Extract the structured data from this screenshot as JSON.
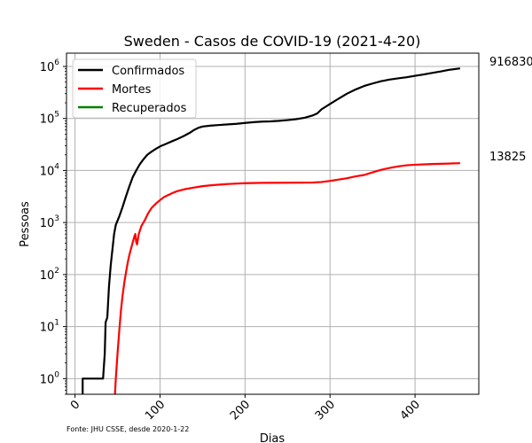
{
  "chart_data": {
    "type": "line",
    "title": "Sweden - Casos de COVID-19 (2021-4-20)",
    "xlabel": "Dias",
    "ylabel": "Pessoas",
    "yscale": "log",
    "xlim": [
      -10,
      475
    ],
    "ylim": [
      0.5,
      1800000
    ],
    "xticks": [
      0,
      100,
      200,
      300,
      400
    ],
    "xtick_labels": [
      "0",
      "100",
      "200",
      "300",
      "400"
    ],
    "yticks": [
      1,
      10,
      100,
      1000,
      10000,
      100000,
      1000000
    ],
    "ytick_base": "10",
    "ytick_exponents": [
      "0",
      "1",
      "2",
      "3",
      "4",
      "5",
      "6"
    ],
    "grid": true,
    "legend_position": "top-left",
    "source_note": "Fonte: JHU CSSE, desde 2020-1-22",
    "annotations": [
      {
        "text": "916830",
        "series": "Confirmados",
        "y": 916830
      },
      {
        "text": "13825",
        "series": "Mortes",
        "y": 13825
      }
    ],
    "series": [
      {
        "name": "Confirmados",
        "color": "#000000",
        "points": [
          [
            9,
            0.5
          ],
          [
            9,
            1
          ],
          [
            33,
            1
          ],
          [
            35,
            3
          ],
          [
            36,
            12
          ],
          [
            38,
            15
          ],
          [
            40,
            60
          ],
          [
            42,
            150
          ],
          [
            44,
            300
          ],
          [
            46,
            600
          ],
          [
            48,
            900
          ],
          [
            52,
            1300
          ],
          [
            56,
            2000
          ],
          [
            60,
            3200
          ],
          [
            64,
            5000
          ],
          [
            68,
            7500
          ],
          [
            72,
            10000
          ],
          [
            76,
            13000
          ],
          [
            80,
            16000
          ],
          [
            85,
            20000
          ],
          [
            90,
            23000
          ],
          [
            95,
            26000
          ],
          [
            100,
            29000
          ],
          [
            108,
            33000
          ],
          [
            115,
            37000
          ],
          [
            120,
            40000
          ],
          [
            128,
            46000
          ],
          [
            135,
            53000
          ],
          [
            140,
            60000
          ],
          [
            145,
            66000
          ],
          [
            150,
            70000
          ],
          [
            160,
            73000
          ],
          [
            170,
            75000
          ],
          [
            180,
            77000
          ],
          [
            190,
            79000
          ],
          [
            200,
            82000
          ],
          [
            210,
            85000
          ],
          [
            220,
            87000
          ],
          [
            230,
            88000
          ],
          [
            240,
            90000
          ],
          [
            250,
            93000
          ],
          [
            260,
            97000
          ],
          [
            270,
            103000
          ],
          [
            280,
            115000
          ],
          [
            285,
            125000
          ],
          [
            290,
            150000
          ],
          [
            300,
            190000
          ],
          [
            310,
            240000
          ],
          [
            320,
            300000
          ],
          [
            330,
            360000
          ],
          [
            340,
            420000
          ],
          [
            350,
            470000
          ],
          [
            360,
            520000
          ],
          [
            370,
            560000
          ],
          [
            380,
            590000
          ],
          [
            390,
            620000
          ],
          [
            400,
            660000
          ],
          [
            410,
            700000
          ],
          [
            420,
            750000
          ],
          [
            430,
            800000
          ],
          [
            440,
            860000
          ],
          [
            453,
            916830
          ]
        ]
      },
      {
        "name": "Mortes",
        "color": "#ff0000",
        "points": [
          [
            47,
            0.5
          ],
          [
            48,
            1
          ],
          [
            50,
            3
          ],
          [
            52,
            8
          ],
          [
            54,
            20
          ],
          [
            56,
            40
          ],
          [
            58,
            70
          ],
          [
            60,
            110
          ],
          [
            62,
            170
          ],
          [
            64,
            240
          ],
          [
            66,
            320
          ],
          [
            68,
            420
          ],
          [
            70,
            550
          ],
          [
            71,
            600
          ],
          [
            72,
            420
          ],
          [
            73,
            380
          ],
          [
            75,
            600
          ],
          [
            78,
            850
          ],
          [
            82,
            1100
          ],
          [
            86,
            1500
          ],
          [
            90,
            1900
          ],
          [
            95,
            2300
          ],
          [
            100,
            2700
          ],
          [
            105,
            3100
          ],
          [
            110,
            3400
          ],
          [
            115,
            3700
          ],
          [
            120,
            4000
          ],
          [
            125,
            4200
          ],
          [
            130,
            4400
          ],
          [
            140,
            4700
          ],
          [
            150,
            5000
          ],
          [
            160,
            5200
          ],
          [
            170,
            5350
          ],
          [
            180,
            5500
          ],
          [
            200,
            5700
          ],
          [
            220,
            5780
          ],
          [
            240,
            5820
          ],
          [
            260,
            5850
          ],
          [
            280,
            5880
          ],
          [
            290,
            6000
          ],
          [
            300,
            6300
          ],
          [
            310,
            6700
          ],
          [
            320,
            7100
          ],
          [
            330,
            7700
          ],
          [
            340,
            8200
          ],
          [
            350,
            9200
          ],
          [
            360,
            10300
          ],
          [
            370,
            11200
          ],
          [
            380,
            12000
          ],
          [
            390,
            12600
          ],
          [
            400,
            12900
          ],
          [
            420,
            13300
          ],
          [
            440,
            13600
          ],
          [
            453,
            13825
          ]
        ]
      },
      {
        "name": "Recuperados",
        "color": "#008000",
        "points": []
      }
    ]
  }
}
